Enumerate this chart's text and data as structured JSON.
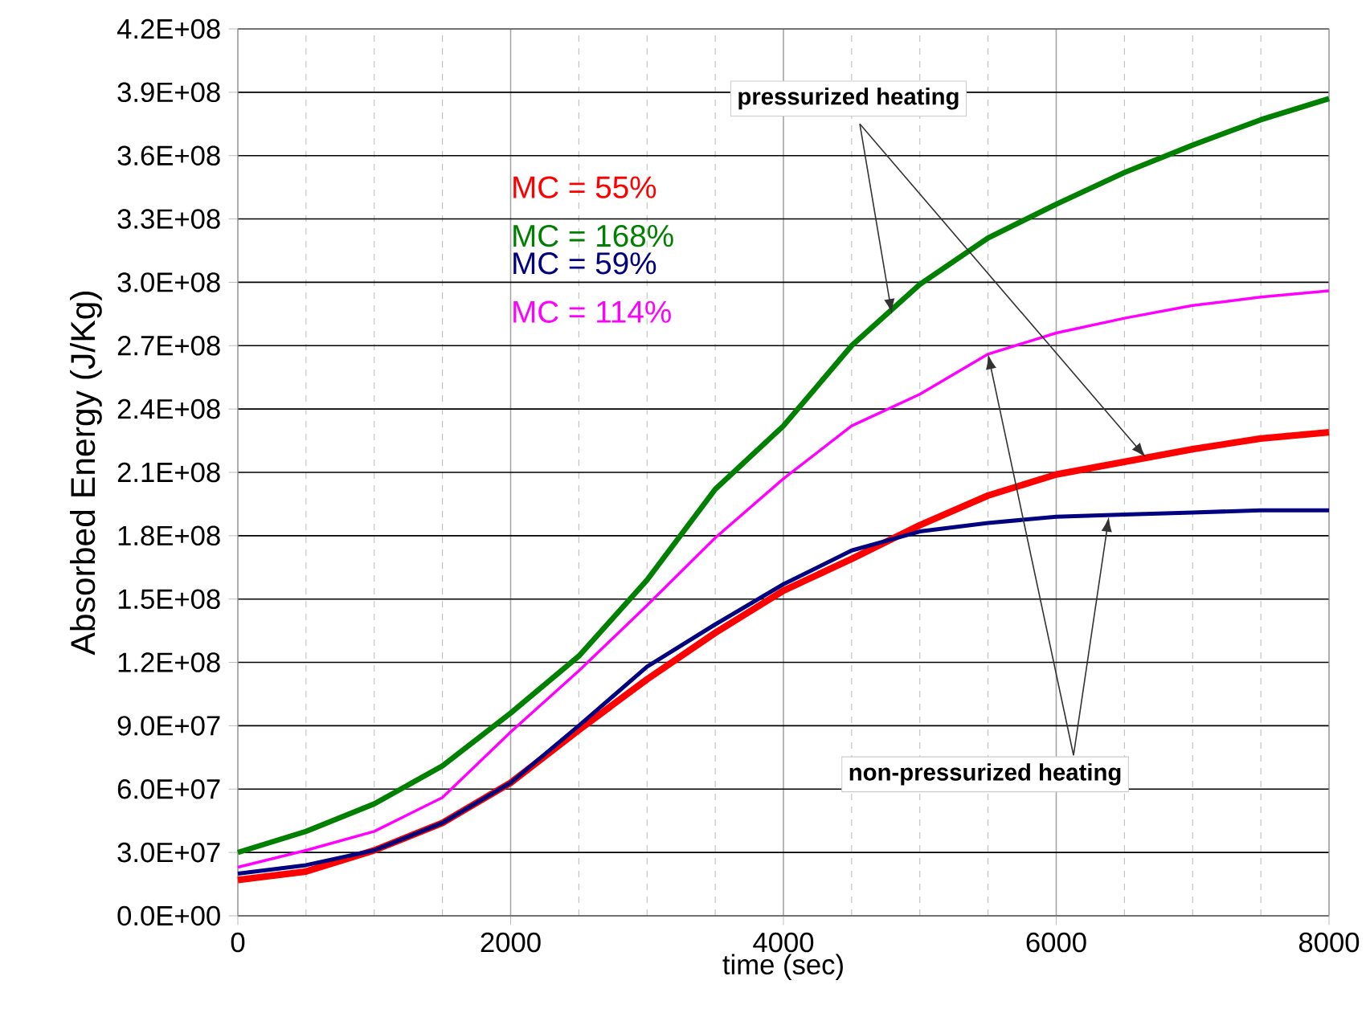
{
  "chart_data": {
    "type": "line",
    "xlabel": "time (sec)",
    "ylabel": "Absorbed Energy (J/Kg)",
    "x": [
      0,
      500,
      1000,
      1500,
      2000,
      2500,
      3000,
      3500,
      4000,
      4500,
      5000,
      5500,
      6000,
      6500,
      7000,
      7500,
      8000
    ],
    "series": [
      {
        "name": "MC = 55%",
        "color": "#ff0000",
        "values": [
          17000000,
          21000000,
          31000000,
          44000000,
          63000000,
          88000000,
          112000000,
          134000000,
          154000000,
          169000000,
          185000000,
          199000000,
          209000000,
          215000000,
          221000000,
          226000000,
          229000000
        ]
      },
      {
        "name": "MC = 168%",
        "color": "#008000",
        "values": [
          30000000,
          40000000,
          53000000,
          71000000,
          96000000,
          123000000,
          159000000,
          202000000,
          232000000,
          270000000,
          299000000,
          321000000,
          337000000,
          352000000,
          365000000,
          377000000,
          387000000
        ]
      },
      {
        "name": "MC = 59%",
        "color": "#000080",
        "values": [
          20000000,
          24000000,
          31000000,
          44000000,
          63000000,
          90000000,
          118000000,
          138000000,
          157000000,
          173000000,
          182000000,
          186000000,
          189000000,
          190000000,
          191000000,
          192000000,
          192000000
        ]
      },
      {
        "name": "MC = 114%",
        "color": "#ff00ff",
        "values": [
          23000000,
          31000000,
          40000000,
          56000000,
          87000000,
          116000000,
          147000000,
          179000000,
          207000000,
          232000000,
          247000000,
          266000000,
          276000000,
          283000000,
          289000000,
          293000000,
          296000000
        ]
      }
    ],
    "xlim": [
      0,
      8000
    ],
    "xticks": [
      0,
      {
        "value": 500,
        "label": null
      },
      {
        "value": 1000,
        "label": null
      },
      {
        "value": 1500,
        "label": null
      },
      2000,
      {
        "value": 2500,
        "label": null
      },
      {
        "value": 3000,
        "label": null
      },
      {
        "value": 3500,
        "label": null
      },
      4000,
      {
        "value": 4500,
        "label": null
      },
      {
        "value": 5000,
        "label": null
      },
      {
        "value": 5500,
        "label": null
      },
      6000,
      {
        "value": 6500,
        "label": null
      },
      {
        "value": 7000,
        "label": null
      },
      {
        "value": 7500,
        "label": null
      },
      8000
    ],
    "ylim": [
      0,
      420000000
    ],
    "yticks": [
      {
        "value": 0,
        "label": "0.0E+00"
      },
      {
        "value": 30000000,
        "label": "3.0E+07"
      },
      {
        "value": 60000000,
        "label": "6.0E+07"
      },
      {
        "value": 90000000,
        "label": "9.0E+07"
      },
      {
        "value": 120000000,
        "label": "1.2E+08"
      },
      {
        "value": 150000000,
        "label": "1.5E+08"
      },
      {
        "value": 180000000,
        "label": "1.8E+08"
      },
      {
        "value": 210000000,
        "label": "2.1E+08"
      },
      {
        "value": 240000000,
        "label": "2.4E+08"
      },
      {
        "value": 270000000,
        "label": "2.7E+08"
      },
      {
        "value": 300000000,
        "label": "3.0E+08"
      },
      {
        "value": 330000000,
        "label": "3.3E+08"
      },
      {
        "value": 360000000,
        "label": "3.6E+08"
      },
      {
        "value": 390000000,
        "label": "3.9E+08"
      },
      {
        "value": 420000000,
        "label": "4.2E+08"
      }
    ],
    "grid": true,
    "line_style": "solid",
    "annotations": [
      {
        "text": "pressurized heating",
        "x": 4795,
        "y": 285000000
      },
      {
        "text": "non-pressurized heating",
        "x": 5500,
        "y": 266000000
      }
    ]
  }
}
